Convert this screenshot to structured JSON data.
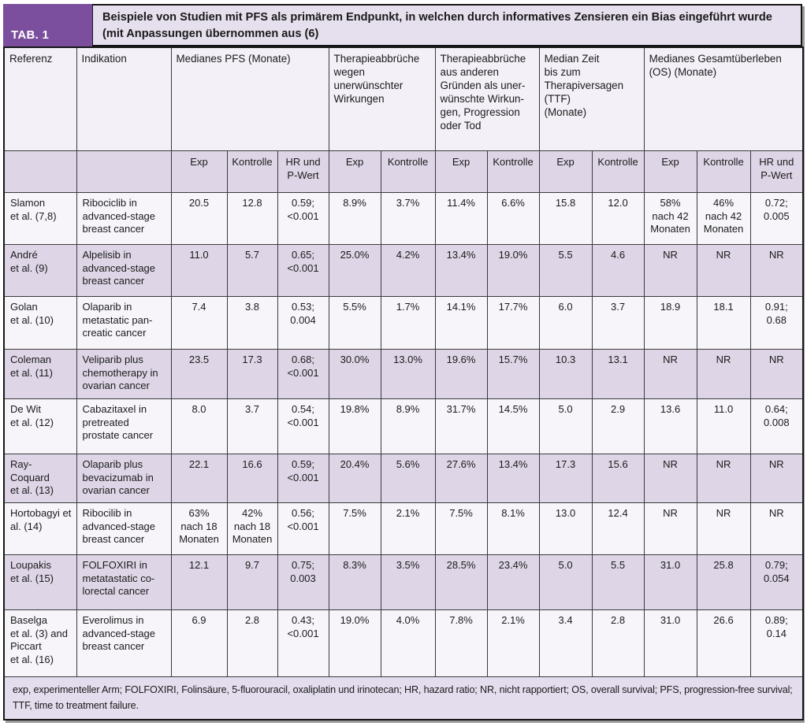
{
  "header": {
    "tab_label": "TAB. 1",
    "title_line1": "Beispiele von Studien mit PFS als primärem Endpunkt, in welchen durch informatives Zensieren ein Bias eingeführt wurde",
    "title_line2": "(mit Anpassungen übernommen aus (6)"
  },
  "colors": {
    "accent_purple": "#7c4f9e",
    "band_lavender": "#e6e0ee",
    "row_lavender": "#ded6e7",
    "row_light": "#f7f5fa"
  },
  "table": {
    "group_headers": [
      {
        "label": "Referenz",
        "colspan": 1
      },
      {
        "label": "Indikation",
        "colspan": 1
      },
      {
        "label": "Medianes PFS (Monate)",
        "colspan": 3
      },
      {
        "label": "Therapieabbrüche\nwegen\nunerwünschter\nWirkungen",
        "colspan": 2
      },
      {
        "label": "Therapieabbrüche\naus anderen\nGründen als uner-\nwünschte Wirkun-\ngen, Progression\noder Tod",
        "colspan": 2
      },
      {
        "label": "Median Zeit\nbis zum\nTherapiversagen\n(TTF)\n(Monate)",
        "colspan": 2
      },
      {
        "label": "Medianes Gesamtüberleben\n(OS) (Monate)",
        "colspan": 3
      }
    ],
    "sub_headers": [
      "",
      "",
      "Exp",
      "Kontrolle",
      "HR und\nP-Wert",
      "Exp",
      "Kontrolle",
      "Exp",
      "Kontrolle",
      "Exp",
      "Kontrolle",
      "Exp",
      "Kontrolle",
      "HR und\nP-Wert"
    ],
    "rows": [
      {
        "referenz": "Slamon\net al. (7,8)",
        "indikation": "Ribociclib in\nadvanced-stage\nbreast cancer",
        "cells": [
          "20.5",
          "12.8",
          "0.59;\n<0.001",
          "8.9%",
          "3.7%",
          "11.4%",
          "6.6%",
          "15.8",
          "12.0",
          "58%\nnach 42\nMonaten",
          "46%\nnach 42\nMonaten",
          "0.72;\n0.005"
        ]
      },
      {
        "referenz": "André\net al. (9)",
        "indikation": "Alpelisib in\nadvanced-stage\nbreast cancer",
        "cells": [
          "11.0",
          "5.7",
          "0.65;\n<0.001",
          "25.0%",
          "4.2%",
          "13.4%",
          "19.0%",
          "5.5",
          "4.6",
          "NR",
          "NR",
          "NR"
        ]
      },
      {
        "referenz": "Golan\net al. (10)",
        "indikation": "Olaparib in\nmetastatic pan-\ncreatic cancer",
        "cells": [
          "7.4",
          "3.8",
          "0.53;\n0.004",
          "5.5%",
          "1.7%",
          "14.1%",
          "17.7%",
          "6.0",
          "3.7",
          "18.9",
          "18.1",
          "0.91;\n0.68"
        ]
      },
      {
        "referenz": "Coleman\net al. (11)",
        "indikation": "Veliparib plus\nchemotherapy in\novarian cancer",
        "cells": [
          "23.5",
          "17.3",
          "0.68;\n<0.001",
          "30.0%",
          "13.0%",
          "19.6%",
          "15.7%",
          "10.3",
          "13.1",
          "NR",
          "NR",
          "NR"
        ]
      },
      {
        "referenz": "De Wit\net al. (12)",
        "indikation": "Cabazitaxel in\npretreated\nprostate cancer",
        "cells": [
          "8.0",
          "3.7",
          "0.54;\n<0.001",
          "19.8%",
          "8.9%",
          "31.7%",
          "14.5%",
          "5.0",
          "2.9",
          "13.6",
          "11.0",
          "0.64;\n0.008"
        ]
      },
      {
        "referenz": "Ray-\nCoquard\net al. (13)",
        "indikation": "Olaparib plus\nbevacizumab in\novarian cancer",
        "cells": [
          "22.1",
          "16.6",
          "0.59;\n<0.001",
          "20.4%",
          "5.6%",
          "27.6%",
          "13.4%",
          "17.3",
          "15.6",
          "NR",
          "NR",
          "NR"
        ]
      },
      {
        "referenz": "Hortobagyi et\nal. (14)",
        "indikation": "Ribocilib in\nadvanced-stage\nbreast cancer",
        "cells": [
          "63%\nnach 18\nMonaten",
          "42%\nnach 18\nMonaten",
          "0.56;\n<0.001",
          "7.5%",
          "2.1%",
          "7.5%",
          "8.1%",
          "13.0",
          "12.4",
          "NR",
          "NR",
          "NR"
        ]
      },
      {
        "referenz": "Loupakis\net al. (15)",
        "indikation": "FOLFOXIRI in\nmetatastatic co-\nlorectal cancer",
        "cells": [
          "12.1",
          "9.7",
          "0.75;\n0.003",
          "8.3%",
          "3.5%",
          "28.5%",
          "23.4%",
          "5.0",
          "5.5",
          "31.0",
          "25.8",
          "0.79;\n0.054"
        ]
      },
      {
        "referenz": "Baselga\net al. (3) and\nPiccart\net al. (16)",
        "indikation": "Everolimus in\nadvanced-stage\nbreast cancer",
        "cells": [
          "6.9",
          "2.8",
          "0.43;\n<0.001",
          "19.0%",
          "4.0%",
          "7.8%",
          "2.1%",
          "3.4",
          "2.8",
          "31.0",
          "26.6",
          "0.89;\n0.14"
        ]
      }
    ],
    "footnote": "exp, experimenteller Arm; FOLFOXIRI, Folinsäure, 5-fluorouracil, oxaliplatin und irinotecan; HR, hazard ratio; NR, nicht rapportiert; OS, overall survival; PFS, pro­gression-free survival; TTF, time to treatment failure."
  }
}
